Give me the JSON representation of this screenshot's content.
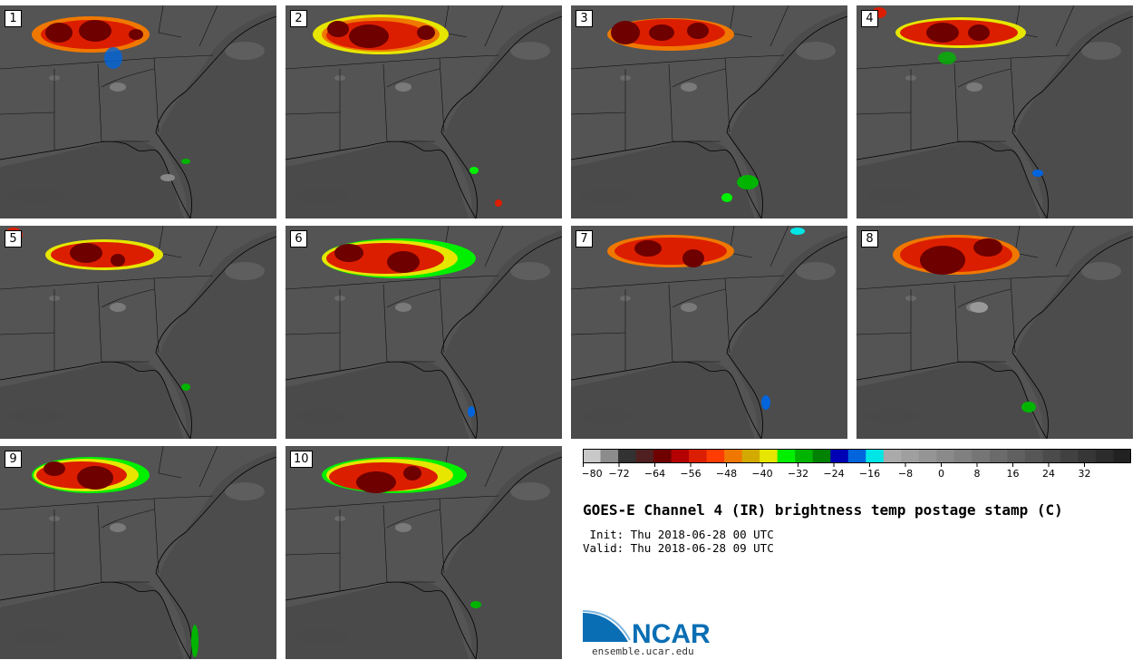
{
  "panels": [
    {
      "label": "1"
    },
    {
      "label": "2"
    },
    {
      "label": "3"
    },
    {
      "label": "4"
    },
    {
      "label": "5"
    },
    {
      "label": "6"
    },
    {
      "label": "7"
    },
    {
      "label": "8"
    },
    {
      "label": "9"
    },
    {
      "label": "10"
    }
  ],
  "colorbar": {
    "colors": [
      "#c8c8c8",
      "#8c8c8c",
      "#323232",
      "#502020",
      "#6e0000",
      "#b40000",
      "#dc1e00",
      "#ff3c00",
      "#f07800",
      "#d2aa00",
      "#e6e600",
      "#00f000",
      "#00b400",
      "#008200",
      "#0000b4",
      "#0064dc",
      "#00e6e6",
      "#aaaaaa",
      "#9f9f9f",
      "#959595",
      "#8a8a8a",
      "#808080",
      "#757575",
      "#6b6b6b",
      "#606060",
      "#565656",
      "#4b4b4b",
      "#414141",
      "#363636",
      "#2c2c2c",
      "#212121"
    ],
    "tick_labels": [
      "−80",
      "−72",
      "−64",
      "−56",
      "−48",
      "−40",
      "−32",
      "−24",
      "−16",
      "−8",
      "0",
      "8",
      "16",
      "24",
      "32"
    ]
  },
  "title": "GOES-E Channel 4 (IR) brightness temp postage stamp (C)",
  "init": " Init: Thu 2018-06-28 00 UTC",
  "valid": "Valid: Thu 2018-06-28 09 UTC",
  "logo": {
    "text": "NCAR",
    "url": "ensemble.ucar.edu",
    "color": "#0a6eb4"
  }
}
